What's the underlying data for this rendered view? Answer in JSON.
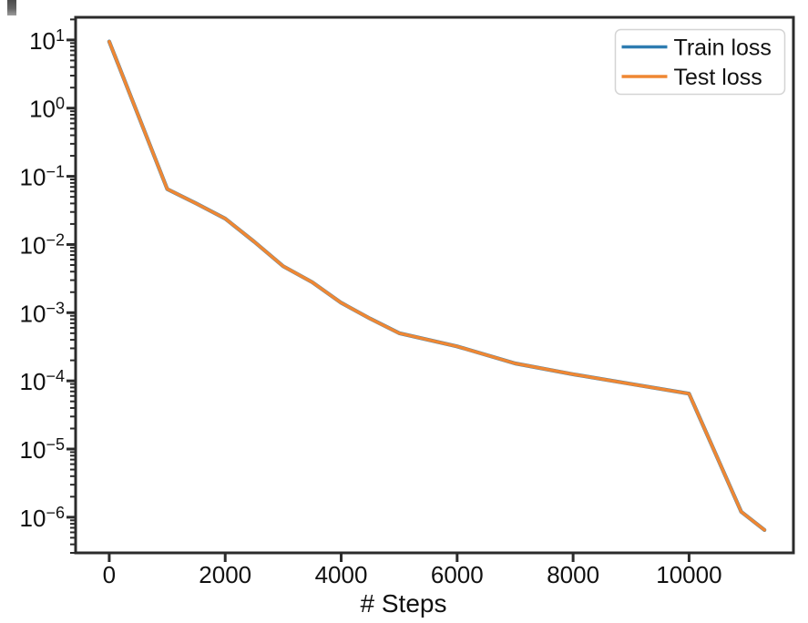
{
  "chart_data": {
    "type": "line",
    "title": "",
    "xlabel": "# Steps",
    "ylabel": "",
    "yscale": "log",
    "grid": false,
    "legend_position": "upper right",
    "xlim": [
      -580,
      11800
    ],
    "ylim": [
      3e-07,
      21.5
    ],
    "x_ticks": [
      0,
      2000,
      4000,
      6000,
      8000,
      10000
    ],
    "y_tick_exponents": [
      1,
      0,
      -1,
      -2,
      -3,
      -4,
      -5,
      -6
    ],
    "x": [
      0,
      1000,
      1500,
      2000,
      2500,
      3000,
      3500,
      4000,
      4500,
      5000,
      6000,
      7000,
      8000,
      9000,
      10000,
      10900,
      11300
    ],
    "series": [
      {
        "name": "Train loss",
        "color": "#2e7cb1",
        "values": [
          9.5,
          0.065,
          0.04,
          0.024,
          0.011,
          0.0048,
          0.0028,
          0.0014,
          0.00082,
          0.0005,
          0.00032,
          0.00018,
          0.000125,
          9e-05,
          6.5e-05,
          1.2e-06,
          6.5e-07
        ]
      },
      {
        "name": "Test loss",
        "color": "#ef8733",
        "values": [
          9.5,
          0.065,
          0.04,
          0.024,
          0.011,
          0.0048,
          0.0028,
          0.0014,
          0.00082,
          0.0005,
          0.00032,
          0.00018,
          0.000125,
          9e-05,
          6.5e-05,
          1.2e-06,
          6.5e-07
        ]
      }
    ],
    "colors": {
      "spine": "#2b2b2b",
      "tick_label": "#111111",
      "legend_border": "#d4d4d4",
      "legend_background": "#ffffff"
    }
  }
}
